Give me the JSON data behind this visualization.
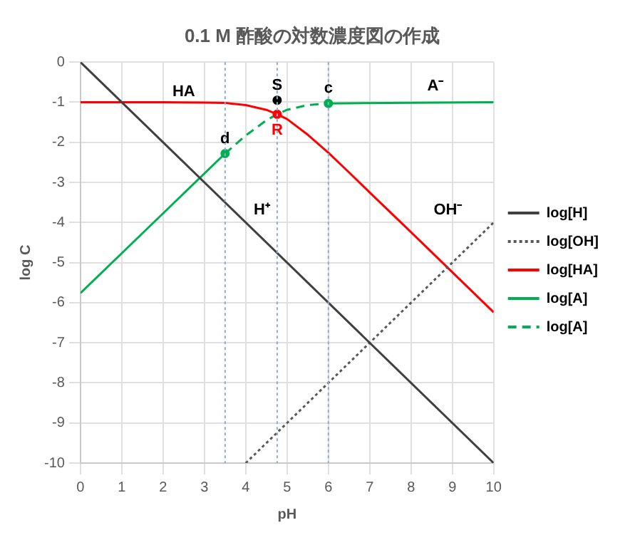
{
  "chart_data": {
    "type": "line",
    "title": "0.1 M 酢酸の対数濃度図の作成",
    "xlabel": "pH",
    "ylabel": "log C",
    "xlim": [
      0,
      10
    ],
    "xticks": [
      0,
      1,
      2,
      3,
      4,
      5,
      6,
      7,
      8,
      9,
      10
    ],
    "ylim": [
      -10,
      0
    ],
    "yticks": [
      -10,
      -9,
      -8,
      -7,
      -6,
      -5,
      -4,
      -3,
      -2,
      -1,
      0
    ],
    "grid": true,
    "legend": "right",
    "marker": "none",
    "series": [
      {
        "name": "log[H]",
        "color": "#404040",
        "line_style": "solid",
        "x": [
          0,
          10
        ],
        "values": [
          0,
          -10
        ]
      },
      {
        "name": "log[OH]",
        "color": "#595959",
        "line_style": "dotted",
        "x": [
          4,
          10
        ],
        "values": [
          -10,
          -4
        ]
      },
      {
        "name": "log[HA]",
        "color": "#ff0000",
        "line_style": "solid",
        "x": [
          0,
          1,
          2,
          3,
          3.5,
          4,
          4.5,
          4.76,
          5,
          5.5,
          6,
          6.5,
          7,
          8,
          9,
          10
        ],
        "values": [
          -1,
          -1,
          -1,
          -1.01,
          -1.02,
          -1.07,
          -1.19,
          -1.3,
          -1.42,
          -1.81,
          -2.26,
          -2.75,
          -3.25,
          -4.24,
          -5.24,
          -6.24
        ]
      },
      {
        "name": "log[A]",
        "color": "#00b050",
        "line_style": "solid",
        "x": [
          0,
          3.5,
          4.76,
          6,
          10
        ],
        "values": [
          -5.76,
          -2.28,
          null,
          -1.03,
          -1
        ]
      },
      {
        "name": "log[A]",
        "color": "#00b050",
        "line_style": "dashed",
        "x": [
          3.5,
          4,
          4.5,
          4.76,
          5,
          5.5,
          6
        ],
        "values": [
          -2.28,
          -1.83,
          -1.45,
          -1.3,
          -1.19,
          -1.07,
          -1.03
        ]
      },
      {
        "type": "scatter",
        "marker": "circle",
        "colors": [
          "#00b050",
          "#ff0000",
          "#00b050",
          "#000000"
        ],
        "x": [
          3.5,
          4.76,
          6,
          4.76
        ],
        "values": [
          -2.28,
          -1.3,
          -1.03,
          -0.95
        ]
      }
    ],
    "ref_lines": [
      {
        "axis": "x",
        "value": 3.5,
        "color": "#8eaadb",
        "line_style": "dotted"
      },
      {
        "axis": "x",
        "value": 4.76,
        "color": "#8eaadb",
        "line_style": "dotted"
      },
      {
        "axis": "x",
        "value": 6,
        "color": "#8eaadb",
        "line_style": "dotted"
      }
    ],
    "annotations": [
      {
        "text": "d",
        "x": 3.5,
        "y": -2.28
      },
      {
        "text": "R",
        "x": 4.76,
        "y": -1.3
      },
      {
        "text": "S",
        "x": 4.76,
        "y": -0.95
      },
      {
        "text": "c",
        "x": 6,
        "y": -1.03
      },
      "HA",
      "A⁻",
      "H⁺",
      "OH⁻"
    ]
  }
}
